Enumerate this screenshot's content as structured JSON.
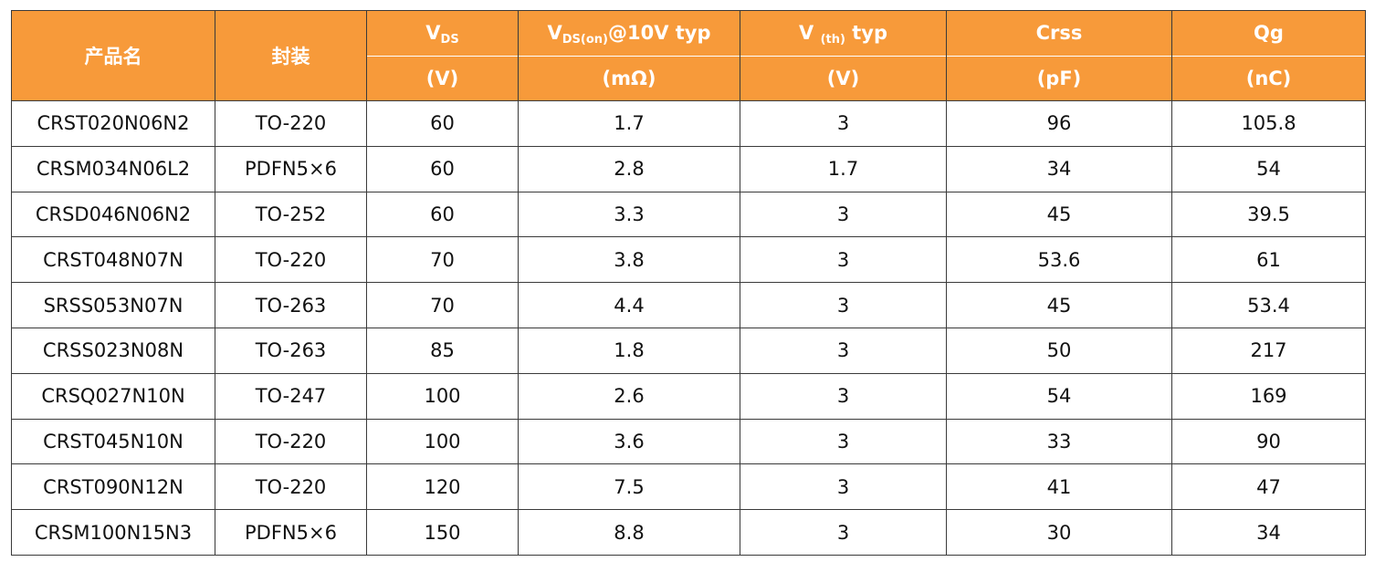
{
  "table": {
    "headers": {
      "name": "产品名",
      "package": "封装",
      "vds": {
        "main": "V",
        "sub": "DS",
        "rest": "",
        "unit": "(V)"
      },
      "rds": {
        "main": "V",
        "sub": "DS(on)",
        "rest": "@10V typ",
        "unit": "(mΩ)"
      },
      "vth": {
        "main": "V ",
        "sub": "(th)",
        "rest": " typ",
        "unit": "(V)"
      },
      "crss": {
        "main": "Crss",
        "unit": "(pF)"
      },
      "qg": {
        "main": "Qg",
        "unit": "(nC)"
      }
    },
    "rows": [
      [
        "CRST020N06N2",
        "TO-220",
        "60",
        "1.7",
        "3",
        "96",
        "105.8"
      ],
      [
        "CRSM034N06L2",
        "PDFN5×6",
        "60",
        "2.8",
        "1.7",
        "34",
        "54"
      ],
      [
        "CRSD046N06N2",
        "TO-252",
        "60",
        "3.3",
        "3",
        "45",
        "39.5"
      ],
      [
        "CRST048N07N",
        "TO-220",
        "70",
        "3.8",
        "3",
        "53.6",
        "61"
      ],
      [
        "SRSS053N07N",
        "TO-263",
        "70",
        "4.4",
        "3",
        "45",
        "53.4"
      ],
      [
        "CRSS023N08N",
        "TO-263",
        "85",
        "1.8",
        "3",
        "50",
        "217"
      ],
      [
        "CRSQ027N10N",
        "TO-247",
        "100",
        "2.6",
        "3",
        "54",
        "169"
      ],
      [
        "CRST045N10N",
        "TO-220",
        "100",
        "3.6",
        "3",
        "33",
        "90"
      ],
      [
        "CRST090N12N",
        "TO-220",
        "120",
        "7.5",
        "3",
        "41",
        "47"
      ],
      [
        "CRSM100N15N3",
        "PDFN5×6",
        "150",
        "8.8",
        "3",
        "30",
        "34"
      ]
    ]
  },
  "colors": {
    "header_bg": "#F79A3A",
    "header_text": "#FFFFFF",
    "border": "#3A3A3A",
    "body_text": "#111111"
  }
}
